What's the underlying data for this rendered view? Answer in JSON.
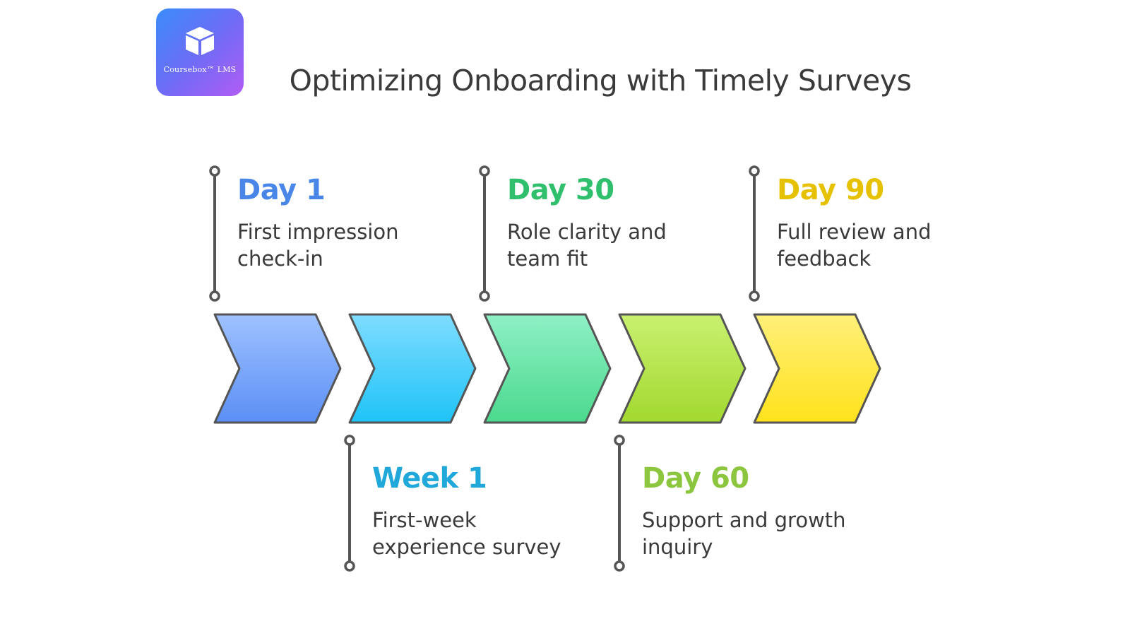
{
  "logo": {
    "icon": "box-icon",
    "text": "Coursebox™ LMS"
  },
  "title": "Optimizing Onboarding with Timely Surveys",
  "stages": [
    {
      "label": "Day 1",
      "description": "First impression check-in",
      "color": "#4a86e8"
    },
    {
      "label": "Week 1",
      "description": "First-week experience survey",
      "color": "#1fa8d9"
    },
    {
      "label": "Day 30",
      "description": "Role clarity and team fit",
      "color": "#2fbf6d"
    },
    {
      "label": "Day 60",
      "description": "Support and growth inquiry",
      "color": "#8cc63f"
    },
    {
      "label": "Day 90",
      "description": "Full review and feedback",
      "color": "#e6c100"
    }
  ],
  "chevron_gradients": [
    {
      "top": "#9fc2ff",
      "bottom": "#5b8ff5"
    },
    {
      "top": "#7fdcff",
      "bottom": "#1fc3f7"
    },
    {
      "top": "#8ff0c6",
      "bottom": "#4bd98d"
    },
    {
      "top": "#c9f070",
      "bottom": "#a2d92f"
    },
    {
      "top": "#fff07a",
      "bottom": "#ffe21c"
    }
  ],
  "outline_color": "#555555"
}
